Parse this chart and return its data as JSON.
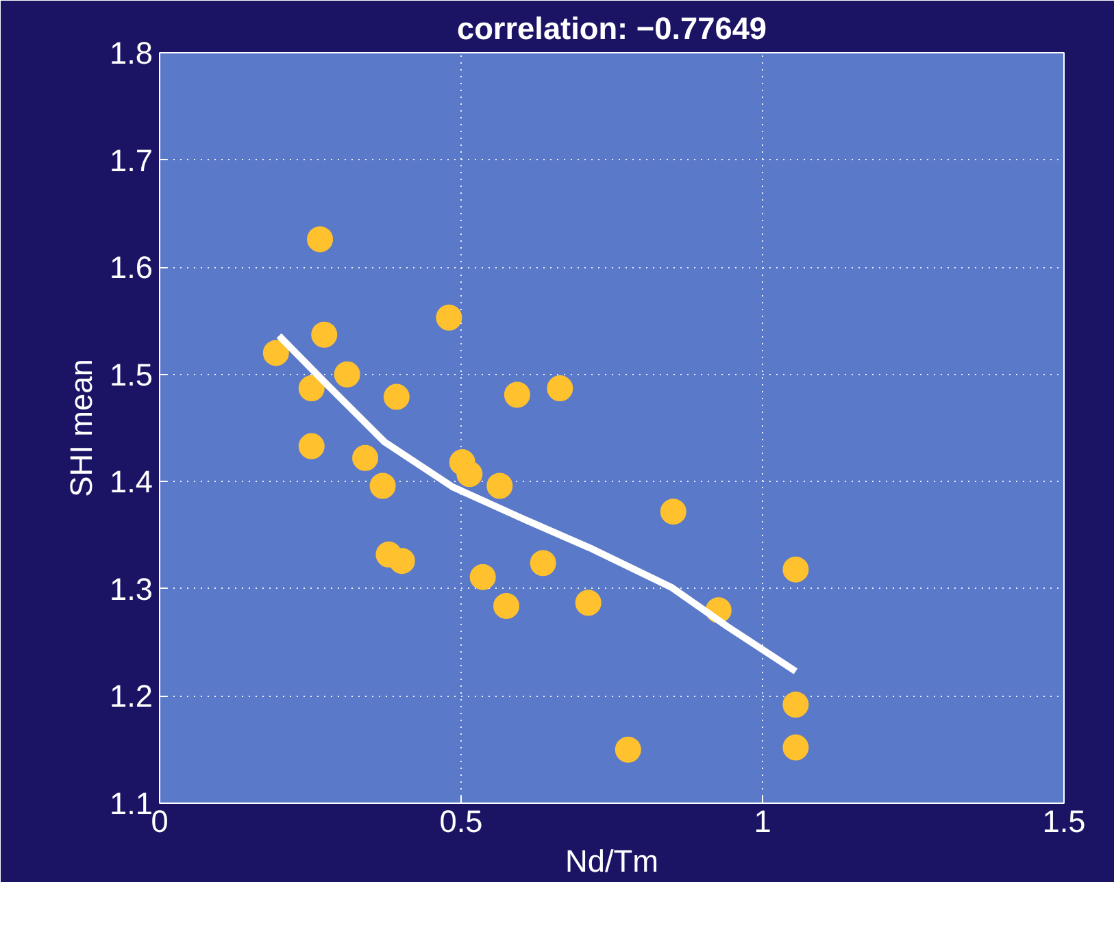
{
  "chart_data": {
    "type": "scatter",
    "title": "correlation: −0.77649",
    "xlabel": "Nd/Tm",
    "ylabel": "SHI mean",
    "xlim": [
      0,
      1.5
    ],
    "xticks": [
      0,
      0.5,
      1,
      1.5
    ],
    "ylim": [
      1.1,
      1.8
    ],
    "yticks": [
      1.1,
      1.2,
      1.3,
      1.4,
      1.5,
      1.6,
      1.7,
      1.8
    ],
    "grid": true,
    "series": [
      {
        "marker": "circle",
        "color": "#ffc12e",
        "x": [
          0.193,
          0.266,
          0.273,
          0.252,
          0.311,
          0.252,
          0.393,
          0.341,
          0.37,
          0.38,
          0.402,
          0.48,
          0.502,
          0.514,
          0.564,
          0.536,
          0.575,
          0.593,
          0.664,
          0.636,
          0.711,
          0.777,
          0.852,
          0.927,
          1.055,
          1.055,
          1.055
        ],
        "values": [
          1.52,
          1.626,
          1.537,
          1.487,
          1.5,
          1.433,
          1.479,
          1.422,
          1.396,
          1.332,
          1.326,
          1.553,
          1.418,
          1.407,
          1.396,
          1.311,
          1.284,
          1.481,
          1.487,
          1.324,
          1.287,
          1.15,
          1.372,
          1.28,
          1.318,
          1.192,
          1.152
        ]
      },
      {
        "type": "line",
        "marker": "none",
        "color": "#ffffff",
        "line_style": "solid",
        "x": [
          0.198,
          0.282,
          0.373,
          0.486,
          0.6,
          0.714,
          0.85,
          0.941,
          1.055
        ],
        "values": [
          1.536,
          1.488,
          1.437,
          1.395,
          1.366,
          1.338,
          1.301,
          1.265,
          1.223
        ]
      }
    ]
  }
}
